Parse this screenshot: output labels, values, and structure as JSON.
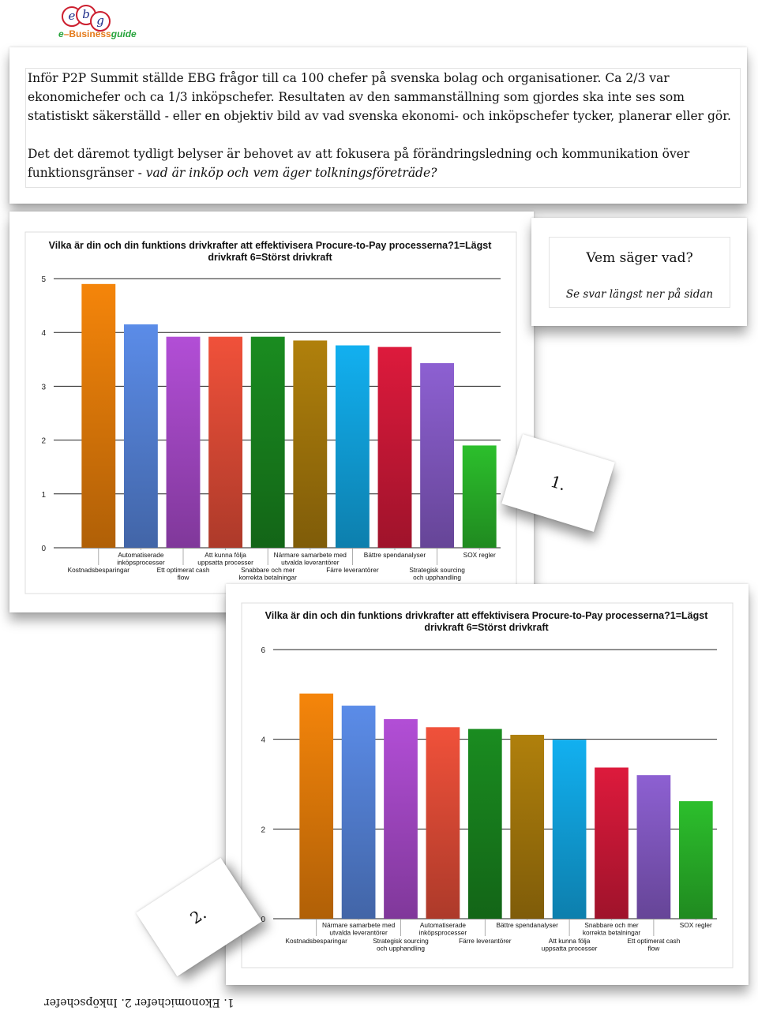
{
  "logo": {
    "letters": [
      "e",
      "b",
      "g"
    ],
    "prefix": "e",
    "dash": "–",
    "word_main": "Business",
    "word_tail": "guide"
  },
  "intro": {
    "paragraph1": "Inför P2P Summit ställde EBG frågor till ca 100 chefer på svenska bolag och organisationer. Ca 2/3 var ekonomichefer och ca 1/3 inköpschefer. Resultaten av den sammanställning som gjordes ska inte ses som statistiskt säkerställd - eller en objektiv bild av vad svenska ekonomi- och inköpschefer tycker, planerar eller gör.",
    "paragraph2_plain": "Det det däremot tydligt belyser är behovet av att fokusera på förändringsledning och kommunikation över funktionsgränser - ",
    "paragraph2_italic": "vad är inköp och vem äger tolkningsföreträde?"
  },
  "sidebox": {
    "title": "Vem säger vad?",
    "subtitle": "Se svar längst ner på sidan"
  },
  "notes": {
    "note1": "1.",
    "note2": "2."
  },
  "caption": "1. Ekonomichefer 2. Inköpschefer",
  "chart_data": [
    {
      "type": "bar",
      "title": "Vilka är din och din funktions drivkrafter att effektivisera Procure-to-Pay processerna?1=Lägst drivkraft 6=Störst drivkraft",
      "title_lines": [
        "Vilka är din och din funktions drivkrafter att effektivisera Procure-to-Pay processerna?1=Lägst",
        "drivkraft 6=Störst drivkraft"
      ],
      "ylim": [
        0,
        5
      ],
      "yticks": [
        0,
        1,
        2,
        3,
        4,
        5
      ],
      "grid": true,
      "categories": [
        "Kostnadsbesparingar",
        "Automatiserade inköpsprocesser",
        "Ett optimerat cash flow",
        "Att kunna följa uppsatta processer",
        "Snabbare och mer korrekta betalningar",
        "Närmare samarbete med utvalda leverantörer",
        "Färre leverantörer",
        "Bättre spendanalyser",
        "Strategisk sourcing och upphandling",
        "SOX regler"
      ],
      "values": [
        4.9,
        4.15,
        3.92,
        3.92,
        3.92,
        3.85,
        3.76,
        3.73,
        3.43,
        1.9
      ],
      "colors": [
        "#f5850a",
        "#5b8ce8",
        "#b24ed6",
        "#f0513a",
        "#1a8c20",
        "#b0800c",
        "#12b0f0",
        "#dd1a3c",
        "#8d60d2",
        "#2cbf2c"
      ]
    },
    {
      "type": "bar",
      "title": "Vilka är din och din funktions drivkrafter att effektivisera Procure-to-Pay processerna?1=Lägst drivkraft 6=Störst drivkraft",
      "title_lines": [
        "Vilka är din och din funktions drivkrafter att effektivisera Procure-to-Pay processerna?1=Lägst",
        "drivkraft 6=Störst drivkraft"
      ],
      "ylim": [
        0,
        6
      ],
      "yticks": [
        0,
        2,
        4,
        6
      ],
      "grid": true,
      "categories": [
        "Kostnadsbesparingar",
        "Närmare samarbete med utvalda leverantörer",
        "Strategisk sourcing och upphandling",
        "Automatiserade inköpsprocesser",
        "Färre leverantörer",
        "Bättre spendanalyser",
        "Att kunna följa uppsatta processer",
        "Snabbare och mer korrekta betalningar",
        "Ett optimerat cash flow",
        "SOX regler"
      ],
      "values": [
        5.02,
        4.75,
        4.45,
        4.27,
        4.23,
        4.1,
        3.99,
        3.37,
        3.2,
        2.62
      ],
      "colors": [
        "#f5850a",
        "#5b8ce8",
        "#b24ed6",
        "#f0513a",
        "#1a8c20",
        "#b0800c",
        "#12b0f0",
        "#dd1a3c",
        "#8d60d2",
        "#2cbf2c"
      ]
    }
  ]
}
